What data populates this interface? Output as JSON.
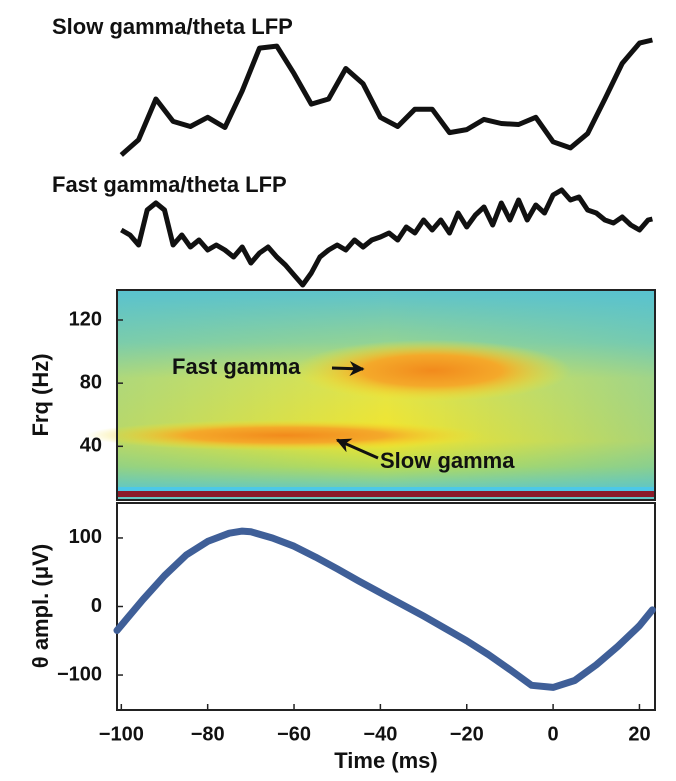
{
  "chart_data": [
    {
      "type": "trace",
      "title": "Slow gamma/theta LFP",
      "color": "#111111",
      "xlim": [
        -101,
        23.6
      ],
      "x": [
        -100,
        -96,
        -92,
        -88,
        -84,
        -80,
        -76,
        -72,
        -68,
        -64,
        -60,
        -56,
        -52,
        -48,
        -44,
        -40,
        -36,
        -32,
        -28,
        -24,
        -20,
        -16,
        -12,
        -8,
        -4,
        0,
        4,
        8,
        12,
        16,
        20,
        23
      ],
      "values": [
        5,
        20,
        60,
        38,
        33,
        42,
        32,
        68,
        110,
        112,
        85,
        55,
        60,
        90,
        75,
        42,
        33,
        50,
        50,
        27,
        30,
        40,
        36,
        35,
        42,
        18,
        12,
        26,
        60,
        95,
        115,
        118
      ]
    },
    {
      "type": "trace",
      "title": "Fast gamma/theta LFP",
      "color": "#111111",
      "xlim": [
        -101,
        23.6
      ],
      "x": [
        -100,
        -98,
        -96,
        -94,
        -92,
        -90,
        -88,
        -86,
        -84,
        -82,
        -80,
        -78,
        -76,
        -74,
        -72,
        -70,
        -68,
        -66,
        -64,
        -62,
        -60,
        -58,
        -56,
        -54,
        -52,
        -50,
        -48,
        -46,
        -44,
        -42,
        -40,
        -38,
        -36,
        -34,
        -32,
        -30,
        -28,
        -26,
        -24,
        -22,
        -20,
        -18,
        -16,
        -14,
        -12,
        -10,
        -8,
        -6,
        -4,
        -2,
        0,
        2,
        4,
        6,
        8,
        10,
        12,
        14,
        16,
        18,
        20,
        22,
        23
      ],
      "values": [
        65,
        60,
        50,
        85,
        92,
        85,
        50,
        60,
        48,
        55,
        45,
        50,
        45,
        38,
        48,
        32,
        42,
        48,
        38,
        30,
        20,
        10,
        22,
        38,
        45,
        50,
        45,
        55,
        48,
        55,
        58,
        62,
        55,
        68,
        62,
        75,
        65,
        75,
        62,
        82,
        68,
        80,
        88,
        70,
        92,
        75,
        95,
        75,
        90,
        82,
        100,
        105,
        95,
        98,
        85,
        82,
        75,
        72,
        78,
        70,
        65,
        75,
        76
      ]
    },
    {
      "type": "spectrogram",
      "ylabel": "Frq (Hz)",
      "xlim": [
        -101,
        23.6
      ],
      "ylim": [
        6,
        139
      ],
      "yticks": [
        40,
        80,
        120
      ],
      "hotspots": [
        {
          "x": -28,
          "y": 88,
          "width": 46,
          "height": 28
        },
        {
          "x": -62,
          "y": 47,
          "width": 66,
          "height": 14
        }
      ],
      "annotations": [
        {
          "text": "Fast gamma",
          "x": -44,
          "y": 89
        },
        {
          "text": "Slow gamma",
          "x": -50,
          "y": 44
        }
      ]
    },
    {
      "type": "line",
      "ylabel": "θ ampl. (μV)",
      "xlabel": "Time (ms)",
      "color": "#3f5f98",
      "xlim": [
        -101,
        23.6
      ],
      "ylim": [
        -151,
        151
      ],
      "xticks": [
        {
          "value": -100,
          "label": "−100"
        },
        {
          "value": -80,
          "label": "−80"
        },
        {
          "value": -60,
          "label": "−60"
        },
        {
          "value": -40,
          "label": "−40"
        },
        {
          "value": -20,
          "label": "−20"
        },
        0,
        20
      ],
      "yticks": [
        {
          "value": -100,
          "label": "−100"
        },
        0,
        100
      ],
      "x": [
        -101,
        -95,
        -90,
        -85,
        -80,
        -75,
        -72,
        -70,
        -65,
        -60,
        -55,
        -50,
        -45,
        -40,
        -35,
        -30,
        -25,
        -20,
        -15,
        -10,
        -5,
        0,
        5,
        10,
        15,
        20,
        23
      ],
      "values": [
        -35,
        10,
        45,
        75,
        95,
        107,
        110,
        109,
        100,
        88,
        72,
        55,
        37,
        20,
        3,
        -14,
        -32,
        -50,
        -70,
        -92,
        -115,
        -118,
        -108,
        -85,
        -58,
        -28,
        -5
      ]
    }
  ]
}
